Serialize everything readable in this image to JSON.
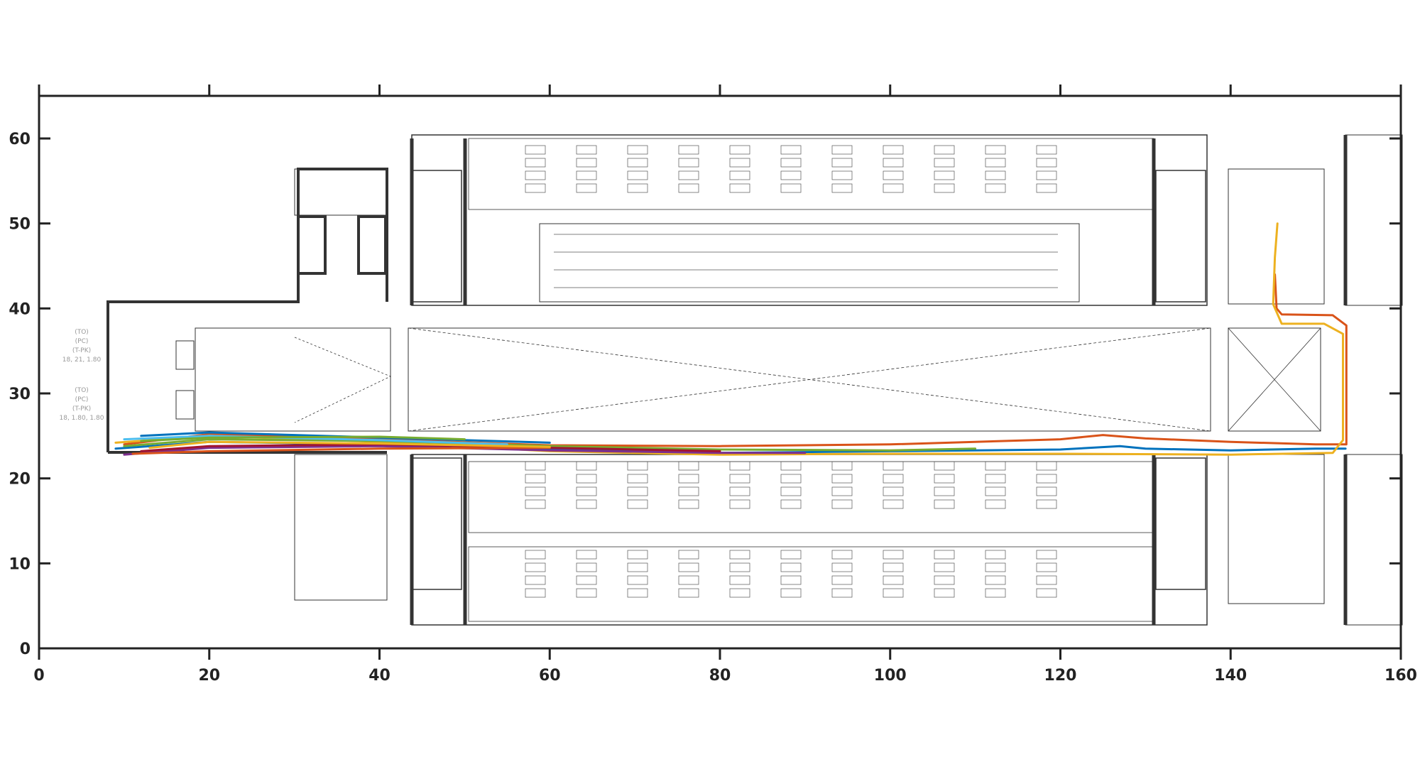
{
  "chart_data": {
    "type": "line",
    "title": "",
    "xlabel": "",
    "ylabel": "",
    "xlim": [
      0,
      160
    ],
    "ylim": [
      0,
      65
    ],
    "x_ticks": [
      0,
      20,
      40,
      60,
      80,
      100,
      120,
      140,
      160
    ],
    "y_ticks": [
      0,
      10,
      20,
      30,
      40,
      50,
      60
    ],
    "x_tick_labels": [
      "0",
      "20",
      "40",
      "60",
      "80",
      "100",
      "120",
      "140",
      "160"
    ],
    "y_tick_labels": [
      "0",
      "10",
      "20",
      "30",
      "40",
      "50",
      "60"
    ],
    "grid": false,
    "background": "building floor plan",
    "floorplan_side_text": [
      "(TO)",
      "(PC)",
      "(T-PK)",
      "18, 21, 1.80",
      "(TO)",
      "(PC)",
      "(T-PK)",
      "18, 1.80, 1.80"
    ],
    "series": [
      {
        "color": "#0072BD",
        "x": [
          9,
          20,
          40,
          60,
          80,
          100,
          120,
          127,
          130,
          140,
          150,
          153.5
        ],
        "y": [
          23.5,
          24.3,
          24.0,
          23.4,
          23.0,
          23.2,
          23.4,
          23.8,
          23.5,
          23.3,
          23.5,
          23.5
        ]
      },
      {
        "color": "#D95319",
        "x": [
          10,
          20,
          40,
          60,
          80,
          100,
          120,
          125,
          130,
          140,
          150,
          153.6,
          153.6,
          152,
          146,
          145.4,
          145.2
        ],
        "y": [
          24.0,
          25.2,
          24.6,
          23.9,
          23.8,
          24.0,
          24.6,
          25.1,
          24.7,
          24.3,
          24.0,
          24.0,
          38.0,
          39.2,
          39.3,
          40.0,
          44.0
        ]
      },
      {
        "color": "#EDB120",
        "x": [
          9,
          20,
          40,
          60,
          80,
          100,
          120,
          140,
          152,
          153.2,
          153.2,
          151,
          146,
          145.0,
          145.2,
          145.5
        ],
        "y": [
          24.2,
          25.0,
          24.3,
          23.2,
          22.8,
          22.9,
          22.9,
          22.8,
          23.0,
          24.5,
          37.0,
          38.2,
          38.2,
          40.5,
          46.0,
          50.0
        ]
      },
      {
        "color": "#7E2F8E",
        "x": [
          10,
          20,
          40,
          60,
          80,
          90
        ],
        "y": [
          22.8,
          23.6,
          23.8,
          23.3,
          23.0,
          23.0
        ]
      },
      {
        "color": "#77AC30",
        "x": [
          10,
          20,
          40,
          60,
          80,
          100,
          110
        ],
        "y": [
          23.8,
          24.6,
          24.4,
          23.8,
          23.4,
          23.3,
          23.5
        ]
      },
      {
        "color": "#4DBEEE",
        "x": [
          10,
          20,
          40,
          55
        ],
        "y": [
          24.6,
          25.0,
          24.5,
          24.0
        ]
      },
      {
        "color": "#A2142F",
        "x": [
          12,
          20,
          40,
          60,
          80
        ],
        "y": [
          23.2,
          23.8,
          24.0,
          23.6,
          23.2
        ]
      },
      {
        "color": "#0072BD",
        "x": [
          12,
          20,
          40,
          60
        ],
        "y": [
          25.0,
          25.4,
          24.8,
          24.2
        ]
      },
      {
        "color": "#D95319",
        "x": [
          11,
          20,
          40,
          60
        ],
        "y": [
          22.9,
          23.2,
          23.5,
          23.6
        ]
      },
      {
        "color": "#77AC30",
        "x": [
          12,
          20,
          40,
          50
        ],
        "y": [
          24.4,
          24.8,
          24.9,
          24.6
        ]
      },
      {
        "color": "#EDB120",
        "x": [
          13,
          20,
          40,
          60
        ],
        "y": [
          23.6,
          24.3,
          24.1,
          23.7
        ]
      }
    ]
  }
}
